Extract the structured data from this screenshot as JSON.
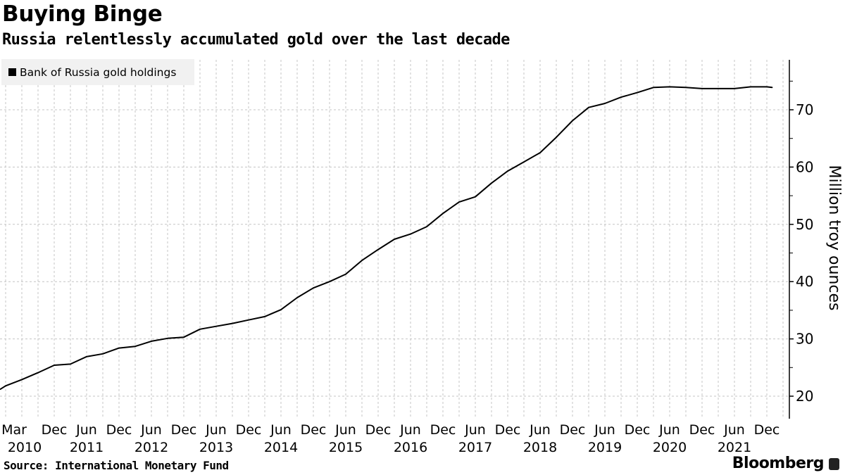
{
  "header": {
    "title": "Buying Binge",
    "subtitle": "Russia relentlessly accumulated gold over the last decade"
  },
  "footer": {
    "source": "Source: International Monetary Fund",
    "brand": "Bloomberg"
  },
  "chart_data": {
    "type": "line",
    "title": "Buying Binge",
    "subtitle": "Russia relentlessly accumulated gold over the last decade",
    "ylabel": "Million troy ounces",
    "xlabel": "",
    "ylim": [
      17,
      79
    ],
    "xlim": [
      "2010-02",
      "2022-02"
    ],
    "yticks": [
      20,
      30,
      40,
      50,
      60,
      70
    ],
    "y_minor_ticks": [
      25,
      35,
      45,
      55,
      65,
      75
    ],
    "y_axis_side": "right",
    "grid": true,
    "legend": {
      "placement": "top-left",
      "entries": [
        "Bank of Russia gold holdings"
      ]
    },
    "line_color": "#000000",
    "xtick_labels": [
      {
        "date": "2010-03",
        "month": "Mar",
        "year": "2010"
      },
      {
        "date": "2010-12",
        "month": "Dec",
        "year": ""
      },
      {
        "date": "2011-06",
        "month": "Jun",
        "year": "2011"
      },
      {
        "date": "2011-12",
        "month": "Dec",
        "year": ""
      },
      {
        "date": "2012-06",
        "month": "Jun",
        "year": "2012"
      },
      {
        "date": "2012-12",
        "month": "Dec",
        "year": ""
      },
      {
        "date": "2013-06",
        "month": "Jun",
        "year": "2013"
      },
      {
        "date": "2013-12",
        "month": "Dec",
        "year": ""
      },
      {
        "date": "2014-06",
        "month": "Jun",
        "year": "2014"
      },
      {
        "date": "2014-12",
        "month": "Dec",
        "year": ""
      },
      {
        "date": "2015-06",
        "month": "Jun",
        "year": "2015"
      },
      {
        "date": "2015-12",
        "month": "Dec",
        "year": ""
      },
      {
        "date": "2016-06",
        "month": "Jun",
        "year": "2016"
      },
      {
        "date": "2016-12",
        "month": "Dec",
        "year": ""
      },
      {
        "date": "2017-06",
        "month": "Jun",
        "year": "2017"
      },
      {
        "date": "2017-12",
        "month": "Dec",
        "year": ""
      },
      {
        "date": "2018-06",
        "month": "Jun",
        "year": "2018"
      },
      {
        "date": "2018-12",
        "month": "Dec",
        "year": ""
      },
      {
        "date": "2019-06",
        "month": "Jun",
        "year": "2019"
      },
      {
        "date": "2019-12",
        "month": "Dec",
        "year": ""
      },
      {
        "date": "2020-06",
        "month": "Jun",
        "year": "2020"
      },
      {
        "date": "2020-12",
        "month": "Dec",
        "year": ""
      },
      {
        "date": "2021-06",
        "month": "Jun",
        "year": "2021"
      },
      {
        "date": "2021-12",
        "month": "Dec",
        "year": ""
      }
    ],
    "series": [
      {
        "name": "Bank of Russia gold holdings",
        "x": [
          "2010-02",
          "2010-03",
          "2010-06",
          "2010-09",
          "2010-12",
          "2011-03",
          "2011-06",
          "2011-09",
          "2011-12",
          "2012-03",
          "2012-06",
          "2012-09",
          "2012-12",
          "2013-03",
          "2013-06",
          "2013-09",
          "2013-12",
          "2014-03",
          "2014-06",
          "2014-09",
          "2014-12",
          "2015-03",
          "2015-06",
          "2015-09",
          "2015-12",
          "2016-03",
          "2016-06",
          "2016-09",
          "2016-12",
          "2017-03",
          "2017-06",
          "2017-09",
          "2017-12",
          "2018-03",
          "2018-06",
          "2018-09",
          "2018-12",
          "2019-03",
          "2019-06",
          "2019-09",
          "2019-12",
          "2020-03",
          "2020-06",
          "2020-09",
          "2020-12",
          "2021-03",
          "2021-06",
          "2021-09",
          "2021-12",
          "2022-01"
        ],
        "values": [
          21.2,
          21.8,
          22.9,
          24.1,
          25.4,
          25.6,
          26.9,
          27.4,
          28.4,
          28.7,
          29.6,
          30.1,
          30.3,
          31.7,
          32.2,
          32.7,
          33.3,
          33.9,
          35.1,
          37.2,
          38.9,
          40.0,
          41.3,
          43.7,
          45.6,
          47.4,
          48.3,
          49.6,
          51.9,
          53.9,
          54.8,
          57.2,
          59.3,
          60.9,
          62.5,
          65.2,
          68.1,
          70.4,
          71.1,
          72.2,
          73.0,
          73.9,
          74.0,
          73.9,
          73.7,
          73.7,
          73.7,
          74.0,
          74.0,
          73.9
        ]
      }
    ]
  }
}
